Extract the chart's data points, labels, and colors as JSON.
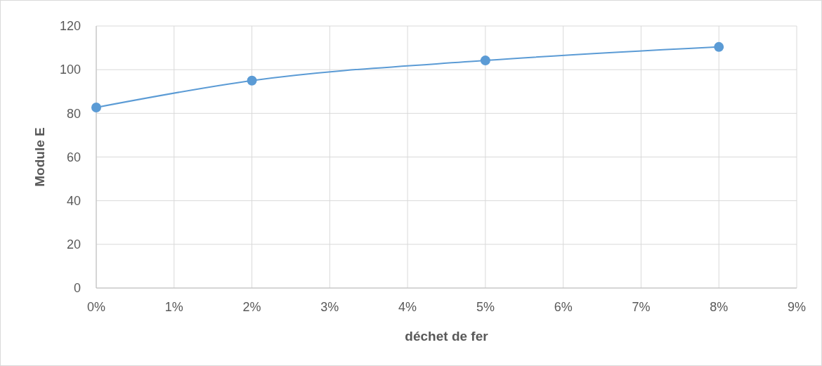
{
  "chart_data": {
    "type": "line",
    "xlabel": "déchet de fer",
    "ylabel": "Module E",
    "x": [
      0,
      2,
      5,
      8
    ],
    "series": [
      {
        "color": "#5b9bd5",
        "values": [
          82.7,
          95,
          104.2,
          110.4
        ]
      }
    ],
    "xlim": [
      0,
      9
    ],
    "xticks": [
      {
        "value": 0,
        "label": "0%"
      },
      {
        "value": 1,
        "label": "1%"
      },
      {
        "value": 2,
        "label": "2%"
      },
      {
        "value": 3,
        "label": "3%"
      },
      {
        "value": 4,
        "label": "4%"
      },
      {
        "value": 5,
        "label": "5%"
      },
      {
        "value": 6,
        "label": "6%"
      },
      {
        "value": 7,
        "label": "7%"
      },
      {
        "value": 8,
        "label": "8%"
      },
      {
        "value": 9,
        "label": "9%"
      }
    ],
    "ylim": [
      0,
      120
    ],
    "yticks": [
      0,
      20,
      40,
      60,
      80,
      100,
      120
    ],
    "grid": true,
    "marker": "circle",
    "line_style": "solid"
  }
}
